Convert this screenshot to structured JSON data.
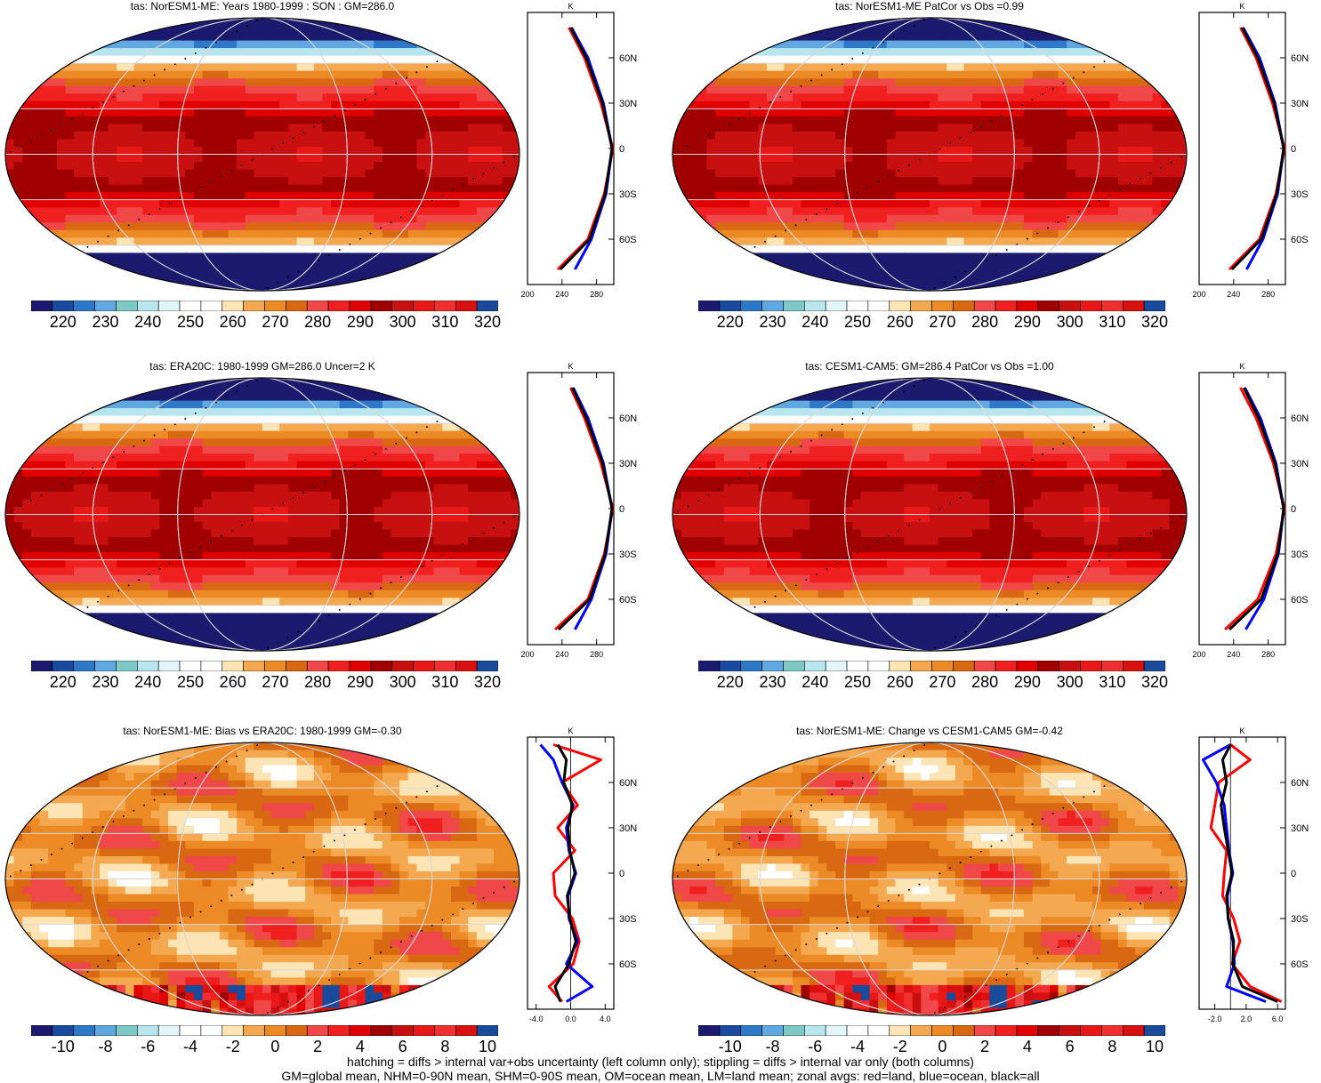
{
  "colors": {
    "abs": [
      "#1c1a6e",
      "#1a4aa0",
      "#2e78c8",
      "#62a8e0",
      "#7ec8c8",
      "#b8e6ee",
      "#e2f5fa",
      "#ffffff",
      "#ffffff",
      "#fde4b4",
      "#f4a850",
      "#ec8a26",
      "#d86812",
      "#f04848",
      "#f02020",
      "#e00000",
      "#a00000",
      "#c81010",
      "#e81818",
      "#f03030",
      "#d81010",
      "#1a4a9a"
    ],
    "diff": [
      "#1c1a6e",
      "#1a4aa0",
      "#2e78c8",
      "#62a8e0",
      "#7ec8c8",
      "#b8e6ee",
      "#e2f5fa",
      "#ffffff",
      "#ffffff",
      "#fde4b4",
      "#f4a850",
      "#ec8a26",
      "#d86812",
      "#f04848",
      "#f02020",
      "#e00000",
      "#a00000",
      "#c81010",
      "#e81818",
      "#f03030",
      "#d81010",
      "#1a4a9a"
    ],
    "land": "#ff0000",
    "ocean": "#0000ff",
    "all": "#000000"
  },
  "panels": [
    {
      "title": "tas: NorESM1-ME: Years 1980-1999 : SON : GM=286.0",
      "cb_labels": [
        "220",
        "230",
        "240",
        "250",
        "260",
        "270",
        "280",
        "290",
        "300",
        "310",
        "320"
      ],
      "zonal_x_ticks": [
        "200",
        "240",
        "280"
      ],
      "zonal_y_ticks": [
        "60N",
        "30N",
        "0",
        "30S",
        "60S"
      ],
      "zonal_unit": "K",
      "kind": "abs"
    },
    {
      "title": "tas: NorESM1-ME PatCor vs Obs =0.99",
      "cb_labels": [
        "220",
        "230",
        "240",
        "250",
        "260",
        "270",
        "280",
        "290",
        "300",
        "310",
        "320"
      ],
      "zonal_x_ticks": [
        "200",
        "240",
        "280"
      ],
      "zonal_y_ticks": [
        "60N",
        "30N",
        "0",
        "30S",
        "60S"
      ],
      "zonal_unit": "K",
      "kind": "abs"
    },
    {
      "title": "tas: ERA20C: 1980-1999 GM=286.0 Uncer=2 K",
      "cb_labels": [
        "220",
        "230",
        "240",
        "250",
        "260",
        "270",
        "280",
        "290",
        "300",
        "310",
        "320"
      ],
      "zonal_x_ticks": [
        "200",
        "240",
        "280"
      ],
      "zonal_y_ticks": [
        "60N",
        "30N",
        "0",
        "30S",
        "60S"
      ],
      "zonal_unit": "K",
      "kind": "abs"
    },
    {
      "title": "tas: CESM1-CAM5: GM=286.4 PatCor vs Obs =1.00",
      "cb_labels": [
        "220",
        "230",
        "240",
        "250",
        "260",
        "270",
        "280",
        "290",
        "300",
        "310",
        "320"
      ],
      "zonal_x_ticks": [
        "200",
        "240",
        "280"
      ],
      "zonal_y_ticks": [
        "60N",
        "30N",
        "0",
        "30S",
        "60S"
      ],
      "zonal_unit": "K",
      "kind": "abs"
    },
    {
      "title": "tas: NorESM1-ME: Bias vs ERA20C: 1980-1999  GM=-0.30",
      "cb_labels": [
        "-10",
        "-8",
        "-6",
        "-4",
        "-2",
        "0",
        "2",
        "4",
        "6",
        "8",
        "10"
      ],
      "zonal_x_ticks": [
        "-4.0",
        "0.0",
        "4.0"
      ],
      "zonal_y_ticks": [
        "60N",
        "30N",
        "0",
        "30S",
        "60S"
      ],
      "zonal_unit": "K",
      "kind": "diff"
    },
    {
      "title": "tas: NorESM1-ME: Change vs CESM1-CAM5 GM=-0.42",
      "cb_labels": [
        "-10",
        "-8",
        "-6",
        "-4",
        "-2",
        "0",
        "2",
        "4",
        "6",
        "8",
        "10"
      ],
      "zonal_x_ticks": [
        "-2.0",
        "2.0",
        "6.0"
      ],
      "zonal_y_ticks": [
        "60N",
        "30N",
        "0",
        "30S",
        "60S"
      ],
      "zonal_unit": "K",
      "kind": "diff"
    }
  ],
  "footer": {
    "line1": "hatching = diffs > internal var+obs uncertainty (left column only); stippling = diffs > internal var only (both columns)",
    "line2": "GM=global mean, NHM=0-90N mean, SHM=0-90S mean, OM=ocean mean, LM=land mean; zonal avgs: red=land, blue=ocean, black=all"
  },
  "chart_data": [
    {
      "type": "heatmap",
      "title": "tas: NorESM1-ME: Years 1980-1999 : SON : GM=286.0",
      "colorbar_ticks": [
        220,
        230,
        240,
        250,
        260,
        270,
        280,
        290,
        300,
        310,
        320
      ],
      "zonal_mean": {
        "lat": [
          80,
          60,
          30,
          0,
          -30,
          -60,
          -80
        ],
        "all": [
          250,
          268,
          287,
          298,
          290,
          272,
          238
        ],
        "land": [
          248,
          266,
          285,
          299,
          289,
          270,
          235
        ],
        "ocean": [
          251,
          270,
          288,
          298,
          291,
          274,
          255
        ],
        "xlim": [
          200,
          300
        ],
        "xticks": [
          200,
          240,
          280
        ]
      }
    },
    {
      "type": "heatmap",
      "title": "tas: NorESM1-ME PatCor vs Obs =0.99",
      "colorbar_ticks": [
        220,
        230,
        240,
        250,
        260,
        270,
        280,
        290,
        300,
        310,
        320
      ],
      "zonal_mean": {
        "lat": [
          80,
          60,
          30,
          0,
          -30,
          -60,
          -80
        ],
        "all": [
          250,
          268,
          287,
          298,
          290,
          272,
          238
        ],
        "land": [
          248,
          266,
          285,
          299,
          289,
          270,
          235
        ],
        "ocean": [
          251,
          270,
          288,
          298,
          291,
          274,
          255
        ],
        "xlim": [
          200,
          300
        ],
        "xticks": [
          200,
          240,
          280
        ]
      }
    },
    {
      "type": "heatmap",
      "title": "tas: ERA20C: 1980-1999 GM=286.0 Uncer=2 K",
      "colorbar_ticks": [
        220,
        230,
        240,
        250,
        260,
        270,
        280,
        290,
        300,
        310,
        320
      ],
      "zonal_mean": {
        "lat": [
          80,
          60,
          30,
          0,
          -30,
          -60,
          -80
        ],
        "all": [
          252,
          268,
          287,
          298,
          290,
          272,
          236
        ],
        "land": [
          250,
          266,
          285,
          299,
          289,
          270,
          232
        ],
        "ocean": [
          253,
          270,
          288,
          298,
          291,
          274,
          255
        ],
        "xlim": [
          200,
          300
        ],
        "xticks": [
          200,
          240,
          280
        ]
      }
    },
    {
      "type": "heatmap",
      "title": "tas: CESM1-CAM5: GM=286.4 PatCor vs Obs =1.00",
      "colorbar_ticks": [
        220,
        230,
        240,
        250,
        260,
        270,
        280,
        290,
        300,
        310,
        320
      ],
      "zonal_mean": {
        "lat": [
          80,
          60,
          30,
          0,
          -30,
          -60,
          -80
        ],
        "all": [
          252,
          269,
          288,
          298,
          291,
          272,
          235
        ],
        "land": [
          248,
          266,
          286,
          299,
          289,
          268,
          230
        ],
        "ocean": [
          253,
          271,
          289,
          298,
          292,
          275,
          254
        ],
        "xlim": [
          200,
          300
        ],
        "xticks": [
          200,
          240,
          280
        ]
      }
    },
    {
      "type": "heatmap",
      "title": "tas: NorESM1-ME: Bias vs ERA20C: 1980-1999  GM=-0.30",
      "colorbar_ticks": [
        -10,
        -8,
        -6,
        -4,
        -2,
        0,
        2,
        4,
        6,
        8,
        10
      ],
      "zonal_mean": {
        "lat": [
          85,
          75,
          60,
          45,
          30,
          15,
          0,
          -15,
          -30,
          -45,
          -60,
          -75,
          -85
        ],
        "all": [
          -1.5,
          -0.5,
          -0.8,
          0.2,
          -0.3,
          -0.1,
          0.5,
          -0.4,
          -0.1,
          0.6,
          -0.2,
          -1.8,
          -1.2
        ],
        "land": [
          -2.0,
          3.5,
          -1.0,
          0.8,
          -1.5,
          0.5,
          -2.0,
          -1.8,
          0.2,
          1.0,
          0.3,
          -2.5,
          -1.0
        ],
        "ocean": [
          -3.5,
          -2.0,
          -1.0,
          0.3,
          -0.5,
          -0.2,
          0.6,
          -0.3,
          -0.2,
          0.8,
          -0.5,
          2.5,
          -0.5
        ],
        "xlim": [
          -5,
          5
        ],
        "xticks": [
          -4,
          0,
          4
        ]
      }
    },
    {
      "type": "heatmap",
      "title": "tas: NorESM1-ME: Change vs CESM1-CAM5 GM=-0.42",
      "colorbar_ticks": [
        -10,
        -8,
        -6,
        -4,
        -2,
        0,
        2,
        4,
        6,
        8,
        10
      ],
      "zonal_mean": {
        "lat": [
          85,
          75,
          60,
          45,
          30,
          15,
          0,
          -15,
          -30,
          -45,
          -60,
          -75,
          -85
        ],
        "all": [
          0,
          -1.0,
          -0.5,
          -1.2,
          -0.8,
          -0.3,
          0.2,
          -0.5,
          -0.3,
          0.4,
          0.3,
          1.5,
          6.0
        ],
        "land": [
          0,
          2.5,
          -1.5,
          -2.0,
          -2.5,
          -0.5,
          -0.8,
          -1.0,
          0.4,
          1.2,
          0.2,
          2.5,
          6.5
        ],
        "ocean": [
          0,
          -3.5,
          -1.8,
          -0.8,
          -0.5,
          -0.2,
          0.3,
          -0.4,
          -0.3,
          0.3,
          0.5,
          -0.5,
          4.5
        ],
        "xlim": [
          -4,
          7
        ],
        "xticks": [
          -2,
          2,
          6
        ]
      }
    }
  ]
}
